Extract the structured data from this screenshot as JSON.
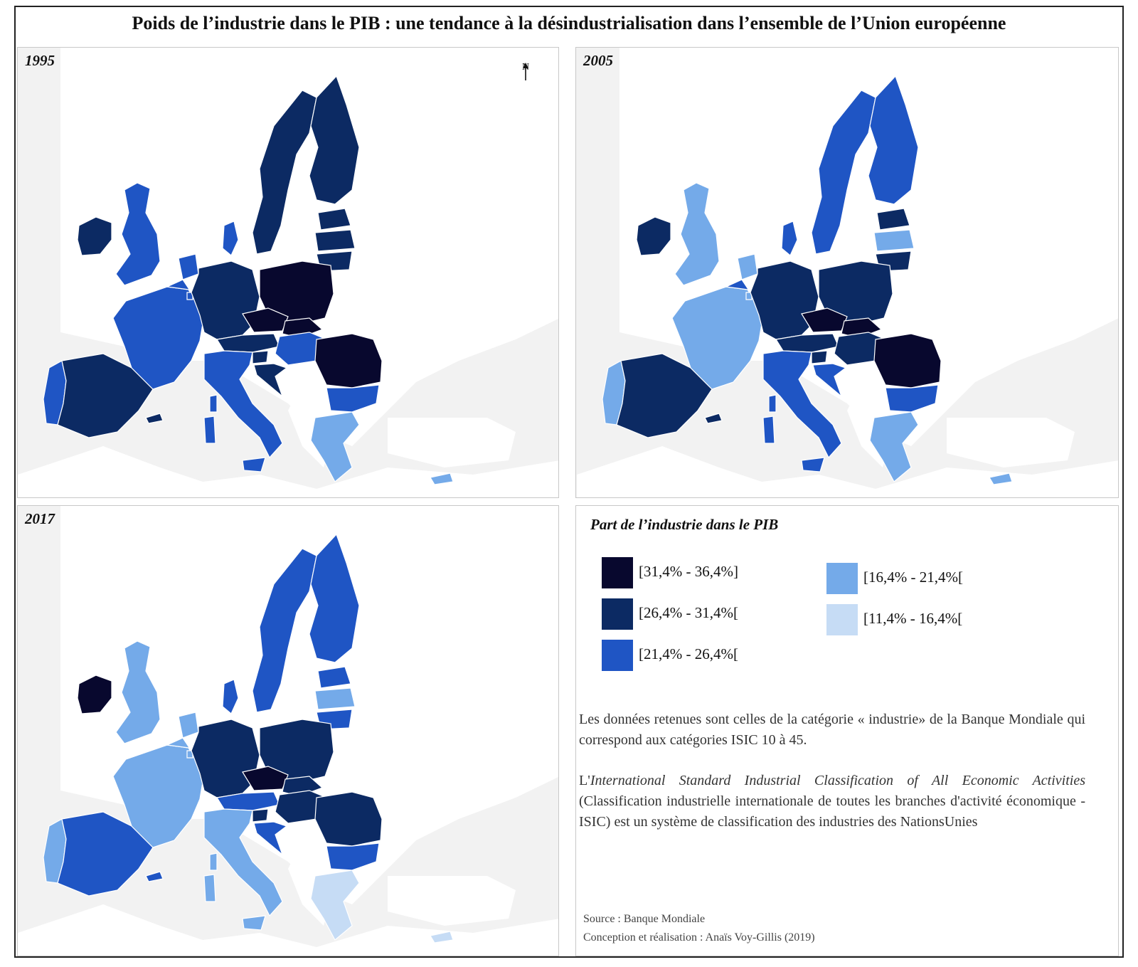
{
  "title": "Poids de l’industrie dans le PIB : une tendance à la désindustrialisation dans l’ensemble de l’Union européenne",
  "north_label": "N",
  "panels": [
    {
      "year": "1995"
    },
    {
      "year": "2005"
    },
    {
      "year": "2017"
    }
  ],
  "legend": {
    "title": "Part de l’industrie dans le PIB",
    "classes": [
      {
        "label": "[31,4% - 36,4%]",
        "color": "#08082e"
      },
      {
        "label": "[26,4% - 31,4%[",
        "color": "#0c2a63"
      },
      {
        "label": "[21,4% - 26,4%[",
        "color": "#1f55c4"
      },
      {
        "label": "[16,4% - 21,4%[",
        "color": "#74aae9"
      },
      {
        "label": "[11,4% - 16,4%[",
        "color": "#c6dcf5"
      }
    ]
  },
  "note_1": "Les données retenues sont celles de la catégorie « industrie» de la Banque Mondiale qui correspond aux catégories ISIC 10 à 45.",
  "note_2_prefix": "L'",
  "note_2_italic": "International Standard Industrial Classification of All Economic Activities",
  "note_2_rest": " (Classification industrielle internationale de toutes les branches d'activité économique - ISIC) est un système de classification des industries des NationsUnies",
  "source": "Source : Banque Mondiale",
  "credit": "Conception et réalisation : Anaïs Voy-Gillis (2019)",
  "colors": {
    "land": "#ffffff",
    "sea": "#f2f2f2",
    "border": "#ffffff"
  },
  "map_classes": {
    "1995": {
      "ireland": "#0c2a63",
      "uk": "#1f55c4",
      "portugal": "#1f55c4",
      "spain": "#0c2a63",
      "france": "#1f55c4",
      "belgium": "#1f55c4",
      "netherlands": "#1f55c4",
      "luxembourg": "#1f55c4",
      "germany": "#0c2a63",
      "denmark": "#1f55c4",
      "sweden": "#0c2a63",
      "finland": "#0c2a63",
      "estonia": "#0c2a63",
      "latvia": "#0c2a63",
      "lithuania": "#0c2a63",
      "poland": "#08082e",
      "czechia": "#08082e",
      "slovakia": "#08082e",
      "austria": "#0c2a63",
      "hungary": "#1f55c4",
      "slovenia": "#0c2a63",
      "croatia": "#0c2a63",
      "italy": "#1f55c4",
      "romania": "#08082e",
      "bulgaria": "#1f55c4",
      "greece": "#74aae9",
      "cyprus": "#74aae9",
      "corsica": "#1f55c4",
      "sardinia": "#1f55c4",
      "sicily": "#1f55c4",
      "balearics": "#0c2a63"
    },
    "2005": {
      "ireland": "#0c2a63",
      "uk": "#74aae9",
      "portugal": "#74aae9",
      "spain": "#0c2a63",
      "france": "#74aae9",
      "belgium": "#1f55c4",
      "netherlands": "#74aae9",
      "luxembourg": "#74aae9",
      "germany": "#0c2a63",
      "denmark": "#1f55c4",
      "sweden": "#1f55c4",
      "finland": "#1f55c4",
      "estonia": "#0c2a63",
      "latvia": "#74aae9",
      "lithuania": "#0c2a63",
      "poland": "#0c2a63",
      "czechia": "#08082e",
      "slovakia": "#08082e",
      "austria": "#0c2a63",
      "hungary": "#0c2a63",
      "slovenia": "#0c2a63",
      "croatia": "#1f55c4",
      "italy": "#1f55c4",
      "romania": "#08082e",
      "bulgaria": "#1f55c4",
      "greece": "#74aae9",
      "cyprus": "#74aae9",
      "corsica": "#1f55c4",
      "sardinia": "#1f55c4",
      "sicily": "#1f55c4",
      "balearics": "#0c2a63"
    },
    "2017": {
      "ireland": "#08082e",
      "uk": "#74aae9",
      "portugal": "#74aae9",
      "spain": "#1f55c4",
      "france": "#74aae9",
      "belgium": "#74aae9",
      "netherlands": "#74aae9",
      "luxembourg": "#74aae9",
      "germany": "#0c2a63",
      "denmark": "#1f55c4",
      "sweden": "#1f55c4",
      "finland": "#1f55c4",
      "estonia": "#1f55c4",
      "latvia": "#74aae9",
      "lithuania": "#1f55c4",
      "poland": "#0c2a63",
      "czechia": "#08082e",
      "slovakia": "#0c2a63",
      "austria": "#1f55c4",
      "hungary": "#0c2a63",
      "slovenia": "#0c2a63",
      "croatia": "#1f55c4",
      "italy": "#74aae9",
      "romania": "#0c2a63",
      "bulgaria": "#1f55c4",
      "greece": "#c6dcf5",
      "cyprus": "#c6dcf5",
      "corsica": "#74aae9",
      "sardinia": "#74aae9",
      "sicily": "#74aae9",
      "balearics": "#1f55c4"
    }
  }
}
